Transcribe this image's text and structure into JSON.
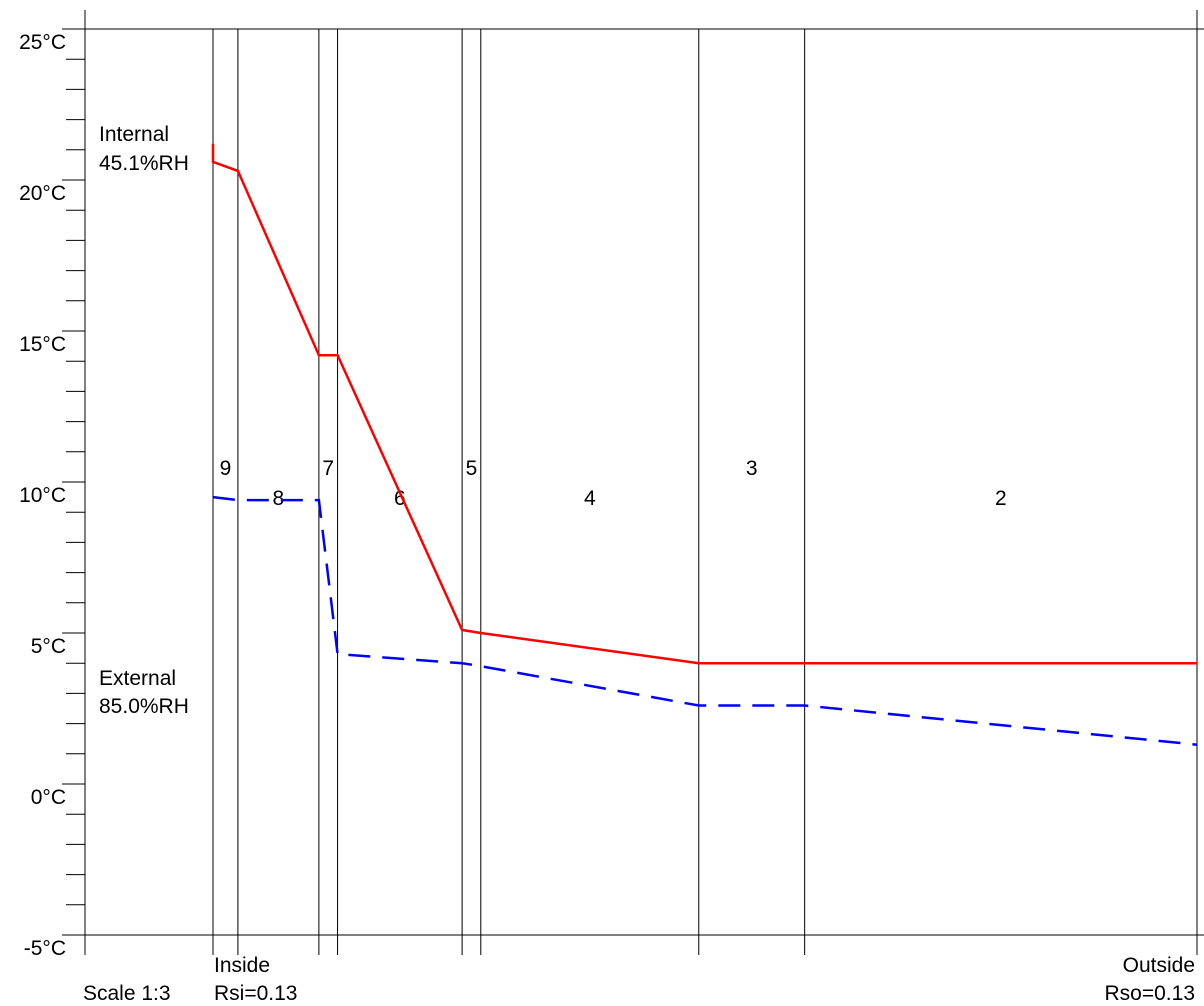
{
  "chart_data": {
    "type": "line",
    "y_unit": "°C",
    "ylim": [
      -5,
      25
    ],
    "y_ticks": [
      {
        "value": 25,
        "label": "25°C"
      },
      {
        "value": 20,
        "label": "20°C"
      },
      {
        "value": 15,
        "label": "15°C"
      },
      {
        "value": 10,
        "label": "10°C"
      },
      {
        "value": 5,
        "label": "5°C"
      },
      {
        "value": 0,
        "label": "0°C"
      },
      {
        "value": -5,
        "label": "-5°C"
      }
    ],
    "y_minor_step": 1,
    "xlim": [
      0,
      79
    ],
    "x_unit": "mm",
    "layer_boundaries": [
      0,
      2,
      8.5,
      10,
      20,
      21.5,
      39,
      47.5,
      79
    ],
    "layers": [
      {
        "label": "9",
        "x_start": 0,
        "x_end": 2
      },
      {
        "label": "8",
        "x_start": 2,
        "x_end": 8.5
      },
      {
        "label": "7",
        "x_start": 8.5,
        "x_end": 10
      },
      {
        "label": "6",
        "x_start": 10,
        "x_end": 20
      },
      {
        "label": "5",
        "x_start": 20,
        "x_end": 21.5
      },
      {
        "label": "4",
        "x_start": 21.5,
        "x_end": 39
      },
      {
        "label": "3",
        "x_start": 39,
        "x_end": 47.5
      },
      {
        "label": "2",
        "x_start": 47.5,
        "x_end": 79
      }
    ],
    "series": [
      {
        "color": "#ff0000",
        "dash": false,
        "x": [
          0,
          0,
          2,
          8.5,
          10,
          20,
          21.5,
          39,
          47.5,
          79
        ],
        "y": [
          21.2,
          20.6,
          20.3,
          14.2,
          14.2,
          5.1,
          5.0,
          4.0,
          4.0,
          4.0
        ]
      },
      {
        "color": "#0000ff",
        "dash": true,
        "x": [
          0,
          2,
          8.5,
          10,
          20,
          21.5,
          39,
          47.5,
          79
        ],
        "y": [
          9.5,
          9.4,
          9.4,
          4.3,
          4.0,
          3.9,
          2.6,
          2.6,
          1.3
        ]
      }
    ],
    "labels": {
      "internal_title": "Internal",
      "internal_rh": "45.1%RH",
      "external_title": "External",
      "external_rh": "85.0%RH",
      "inside": "Inside",
      "outside": "Outside",
      "scale": "Scale 1:3",
      "rsi": "Rsi=0.13",
      "rso": "Rso=0.13"
    }
  }
}
